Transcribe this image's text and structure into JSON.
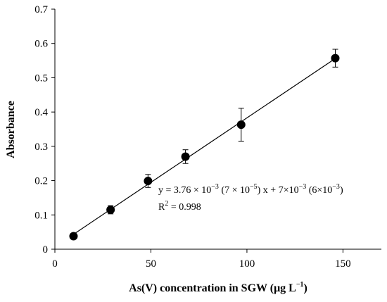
{
  "chart_data": {
    "type": "scatter",
    "title": "",
    "xlabel": "As(V) concentration in SGW (μg L",
    "xlabel_sup": "−1",
    "xlabel_close": ")",
    "ylabel": "Absorbance",
    "xlim": [
      0,
      170
    ],
    "ylim": [
      0,
      0.7
    ],
    "xticks": [
      0,
      50,
      100,
      150
    ],
    "yticks": [
      0,
      0.1,
      0.2,
      0.3,
      0.4,
      0.5,
      0.6,
      0.7
    ],
    "grid": false,
    "legend": "none",
    "series": [
      {
        "marker": "filled-circle",
        "points": [
          {
            "x": 9.7,
            "y": 0.038,
            "err": 0.004
          },
          {
            "x": 29,
            "y": 0.115,
            "err": 0.012
          },
          {
            "x": 48.5,
            "y": 0.199,
            "err": 0.019
          },
          {
            "x": 68,
            "y": 0.27,
            "err": 0.02
          },
          {
            "x": 97,
            "y": 0.363,
            "err": 0.048
          },
          {
            "x": 146,
            "y": 0.557,
            "err": 0.026
          }
        ]
      }
    ],
    "fit": {
      "slope": 0.00376,
      "intercept": 0.007,
      "x_from": 9.7,
      "x_to": 146
    },
    "annotations": {
      "equation": {
        "p1": "y = 3.76 × 10",
        "s1": "−3",
        "p2": " (7 × 10",
        "s2": "−5",
        "p3": ") x + 7×10",
        "s3": "−3",
        "p4": " (6×10",
        "s4": "−3",
        "p5": ")"
      },
      "r2": {
        "p1": "R",
        "s1": "2",
        "p2": " = 0.998"
      }
    }
  }
}
